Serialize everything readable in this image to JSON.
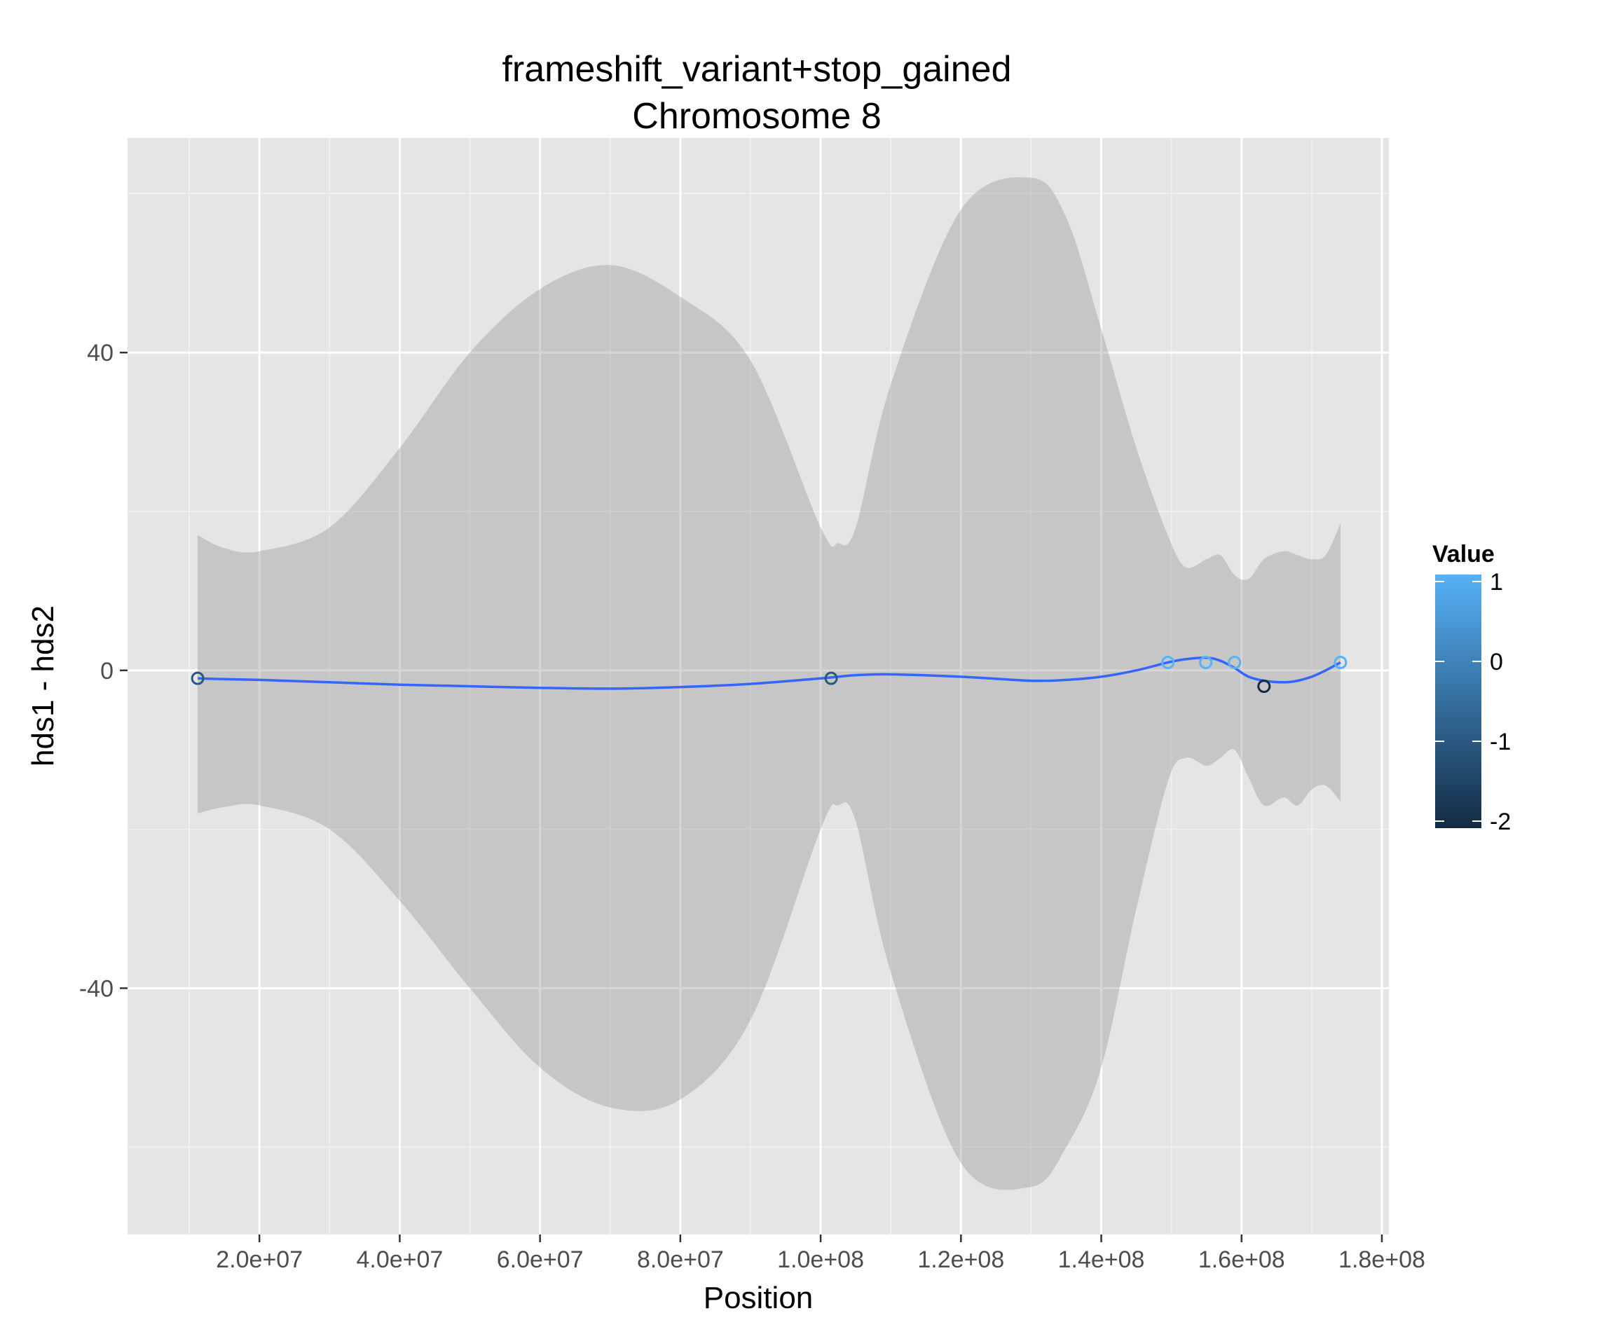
{
  "chart_data": {
    "type": "scatter",
    "title": "frameshift_variant+stop_gained",
    "subtitle": "Chromosome 8",
    "xlabel": "Position",
    "ylabel": "hds1 - hds2",
    "xlim": [
      1200000,
      181000000
    ],
    "ylim": [
      -71,
      67
    ],
    "x_ticks": [
      20000000,
      40000000,
      60000000,
      80000000,
      100000000,
      120000000,
      140000000,
      160000000,
      180000000
    ],
    "x_tick_labels": [
      "2.0e+07",
      "4.0e+07",
      "6.0e+07",
      "8.0e+07",
      "1.0e+08",
      "1.2e+08",
      "1.4e+08",
      "1.6e+08",
      "1.8e+08"
    ],
    "y_ticks": [
      -40,
      0,
      40
    ],
    "y_tick_labels": [
      "-40",
      "0",
      "40"
    ],
    "grid": true,
    "points": [
      {
        "x": 11200000,
        "y": -1,
        "value": -1
      },
      {
        "x": 101500000,
        "y": -1,
        "value": -1
      },
      {
        "x": 149500000,
        "y": 1,
        "value": 1
      },
      {
        "x": 154900000,
        "y": 1,
        "value": 1
      },
      {
        "x": 159000000,
        "y": 1,
        "value": 1
      },
      {
        "x": 163200000,
        "y": -2,
        "value": -2
      },
      {
        "x": 174100000,
        "y": 1,
        "value": 1
      }
    ],
    "smooth": {
      "x": [
        11200000,
        15000000,
        20000000,
        30000000,
        40000000,
        50000000,
        60000000,
        70000000,
        80000000,
        90000000,
        100000000,
        102500000,
        105000000,
        110000000,
        120000000,
        130000000,
        135000000,
        140000000,
        145000000,
        149500000,
        152000000,
        155000000,
        157000000,
        159000000,
        161000000,
        163200000,
        166000000,
        168000000,
        170000000,
        172000000,
        174100000
      ],
      "y": [
        -1,
        -1.1,
        -1.2,
        -1.5,
        -1.8,
        -2.0,
        -2.2,
        -2.3,
        -2.1,
        -1.7,
        -1.0,
        -0.8,
        -0.6,
        -0.5,
        -0.8,
        -1.3,
        -1.2,
        -0.8,
        0.0,
        1.0,
        1.4,
        1.6,
        1.2,
        0.3,
        -0.8,
        -1.3,
        -1.5,
        -1.3,
        -0.8,
        0.0,
        1.0
      ],
      "lower": [
        -18,
        -17.2,
        -17,
        -20,
        -29,
        -40,
        -50,
        -55,
        -54,
        -44,
        -20,
        -17,
        -19,
        -38,
        -62,
        -65,
        -60,
        -50,
        -30,
        -14,
        -11,
        -12,
        -11,
        -10,
        -13.5,
        -17,
        -16,
        -17,
        -15,
        -14.5,
        -16.5
      ],
      "upper": [
        17,
        15.4,
        15,
        18,
        28,
        40,
        48,
        51,
        47,
        39,
        18,
        16,
        18,
        36,
        58,
        62,
        57,
        43,
        28,
        17,
        13,
        14,
        14.5,
        12,
        11.5,
        14,
        15,
        14.5,
        14,
        14.5,
        18.5
      ]
    },
    "color_scale": {
      "name": "Value",
      "min": -2,
      "max": 1,
      "low_color": "#132B43",
      "high_color": "#56B1F7",
      "ticks": [
        1,
        0,
        -1,
        -2
      ],
      "tick_labels": [
        "1",
        "0",
        "-1",
        "-2"
      ]
    },
    "line_color": "#3366FF",
    "ribbon_color": "#999999",
    "panel_background": "#E5E5E5",
    "legend_position": "right"
  }
}
